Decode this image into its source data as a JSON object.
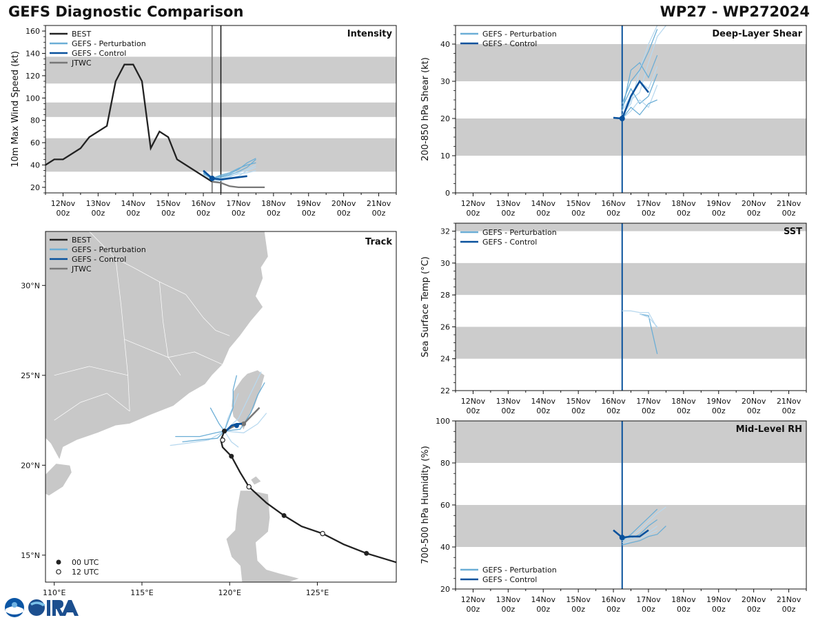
{
  "header": {
    "title_left": "GEFS Diagnostic Comparison",
    "title_right": "WP27 - WP272024"
  },
  "colors": {
    "best": "#222222",
    "perturbation": "#6baed6",
    "perturbation_light": "#b9d9ef",
    "control": "#08519c",
    "jtwc": "#777777",
    "band": "#cccccc",
    "land": "#c8c8c8",
    "init_line_gray": "#888888"
  },
  "time_axis": {
    "range_hours": [
      -108,
      132
    ],
    "ticks": [
      {
        "t": -96,
        "day": "12Nov",
        "hour": "00z"
      },
      {
        "t": -72,
        "day": "13Nov",
        "hour": "00z"
      },
      {
        "t": -48,
        "day": "14Nov",
        "hour": "00z"
      },
      {
        "t": -24,
        "day": "15Nov",
        "hour": "00z"
      },
      {
        "t": 0,
        "day": "16Nov",
        "hour": "00z"
      },
      {
        "t": 24,
        "day": "17Nov",
        "hour": "00z"
      },
      {
        "t": 48,
        "day": "18Nov",
        "hour": "00z"
      },
      {
        "t": 72,
        "day": "19Nov",
        "hour": "00z"
      },
      {
        "t": 96,
        "day": "20Nov",
        "hour": "00z"
      },
      {
        "t": 120,
        "day": "21Nov",
        "hour": "00z"
      }
    ],
    "init_time": 6,
    "current_time": 12
  },
  "legend_labels": {
    "best": "BEST",
    "perturbation": "GEFS - Perturbation",
    "control": "GEFS - Control",
    "jtwc": "JTWC",
    "utc00": "00 UTC",
    "utc12": "12 UTC"
  },
  "chart_data": [
    {
      "id": "intensity",
      "type": "line",
      "title": "Intensity",
      "ylabel": "10m Max Wind Speed (kt)",
      "ylim": [
        15,
        165
      ],
      "yticks": [
        20,
        40,
        60,
        80,
        100,
        120,
        140,
        160
      ],
      "bands": [
        [
          34,
          64
        ],
        [
          83,
          96
        ],
        [
          113,
          137
        ]
      ],
      "best": [
        [
          -108,
          40
        ],
        [
          -102,
          45
        ],
        [
          -96,
          45
        ],
        [
          -84,
          55
        ],
        [
          -78,
          65
        ],
        [
          -66,
          75
        ],
        [
          -60,
          115
        ],
        [
          -54,
          130
        ],
        [
          -48,
          130
        ],
        [
          -42,
          115
        ],
        [
          -36,
          55
        ],
        [
          -30,
          70
        ],
        [
          -24,
          65
        ],
        [
          -18,
          45
        ],
        [
          6,
          25
        ]
      ],
      "control": [
        [
          0,
          35
        ],
        [
          6,
          28
        ],
        [
          12,
          27
        ],
        [
          18,
          28
        ],
        [
          24,
          29
        ],
        [
          30,
          30
        ]
      ],
      "perturbations": [
        [
          [
            0,
            33
          ],
          [
            6,
            26
          ],
          [
            12,
            27
          ],
          [
            18,
            29
          ],
          [
            24,
            33
          ],
          [
            30,
            36
          ],
          [
            36,
            40
          ]
        ],
        [
          [
            0,
            32
          ],
          [
            6,
            28
          ],
          [
            12,
            30
          ],
          [
            18,
            32
          ],
          [
            24,
            36
          ],
          [
            30,
            42
          ],
          [
            36,
            46
          ]
        ],
        [
          [
            0,
            30
          ],
          [
            6,
            25
          ],
          [
            12,
            26
          ],
          [
            18,
            28
          ],
          [
            24,
            30
          ],
          [
            30,
            35
          ],
          [
            36,
            38
          ]
        ],
        [
          [
            0,
            34
          ],
          [
            6,
            27
          ],
          [
            12,
            29
          ],
          [
            18,
            31
          ],
          [
            24,
            34
          ],
          [
            30,
            38
          ],
          [
            36,
            45
          ]
        ],
        [
          [
            0,
            31
          ],
          [
            6,
            26
          ],
          [
            12,
            28
          ],
          [
            18,
            30
          ],
          [
            24,
            32
          ],
          [
            30,
            33
          ],
          [
            36,
            35
          ]
        ],
        [
          [
            0,
            33
          ],
          [
            6,
            28
          ],
          [
            12,
            31
          ],
          [
            18,
            33
          ],
          [
            24,
            37
          ],
          [
            30,
            40
          ],
          [
            36,
            42
          ]
        ]
      ],
      "jtwc": [
        [
          6,
          25
        ],
        [
          12,
          24
        ],
        [
          18,
          21
        ],
        [
          24,
          20
        ],
        [
          30,
          20
        ],
        [
          36,
          20
        ],
        [
          42,
          20
        ]
      ]
    },
    {
      "id": "shear",
      "type": "line",
      "title": "Deep-Layer Shear",
      "ylabel": "200-850 hPa Shear (kt)",
      "ylim": [
        0,
        45
      ],
      "yticks": [
        0,
        10,
        20,
        30,
        40
      ],
      "bands": [
        [
          10,
          20
        ],
        [
          30,
          40
        ]
      ],
      "control": [
        [
          0,
          20.2
        ],
        [
          6,
          20
        ],
        [
          12,
          26
        ],
        [
          18,
          30
        ],
        [
          24,
          27
        ]
      ],
      "perturbations": [
        [
          [
            6,
            20
          ],
          [
            12,
            25
          ],
          [
            18,
            27
          ],
          [
            24,
            35
          ],
          [
            30,
            42
          ],
          [
            36,
            45
          ]
        ],
        [
          [
            6,
            22
          ],
          [
            12,
            33
          ],
          [
            18,
            35
          ],
          [
            24,
            31
          ],
          [
            30,
            37
          ]
        ],
        [
          [
            6,
            21
          ],
          [
            12,
            24
          ],
          [
            18,
            33
          ],
          [
            24,
            40
          ],
          [
            30,
            45
          ]
        ],
        [
          [
            6,
            23
          ],
          [
            12,
            28
          ],
          [
            18,
            24
          ],
          [
            24,
            26
          ],
          [
            30,
            32
          ]
        ],
        [
          [
            6,
            20
          ],
          [
            12,
            22
          ],
          [
            18,
            25
          ],
          [
            24,
            23
          ],
          [
            30,
            29
          ]
        ],
        [
          [
            6,
            24
          ],
          [
            12,
            30
          ],
          [
            18,
            33
          ],
          [
            24,
            38
          ],
          [
            30,
            44
          ]
        ],
        [
          [
            6,
            22
          ],
          [
            12,
            26
          ],
          [
            18,
            30
          ],
          [
            24,
            28
          ],
          [
            30,
            34
          ]
        ],
        [
          [
            6,
            20
          ],
          [
            12,
            23
          ],
          [
            18,
            21
          ],
          [
            24,
            24
          ],
          [
            30,
            25
          ]
        ]
      ]
    },
    {
      "id": "sst",
      "type": "line",
      "title": "SST",
      "ylabel": "Sea Surface Temp (°C)",
      "ylim": [
        22,
        32.5
      ],
      "yticks": [
        22,
        24,
        26,
        28,
        30,
        32
      ],
      "bands": [
        [
          24,
          26
        ],
        [
          28,
          30
        ],
        [
          32,
          32.5
        ]
      ],
      "control": [],
      "perturbations": [
        [
          [
            6,
            27
          ],
          [
            12,
            27
          ],
          [
            18,
            26.9
          ],
          [
            24,
            26.9
          ],
          [
            30,
            25.9
          ]
        ],
        [
          [
            18,
            26.8
          ],
          [
            24,
            26.7
          ],
          [
            30,
            24.3
          ]
        ],
        [
          [
            18,
            26.8
          ],
          [
            24,
            26.6
          ],
          [
            30,
            26
          ]
        ]
      ]
    },
    {
      "id": "rh",
      "type": "line",
      "title": "Mid-Level RH",
      "ylabel": "700-500 hPa Humidity (%)",
      "ylim": [
        20,
        100
      ],
      "yticks": [
        20,
        40,
        60,
        80,
        100
      ],
      "bands": [
        [
          40,
          60
        ],
        [
          80,
          100
        ]
      ],
      "control": [
        [
          0,
          48
        ],
        [
          6,
          44.5
        ],
        [
          12,
          45
        ],
        [
          18,
          45
        ],
        [
          24,
          48
        ]
      ],
      "perturbations": [
        [
          [
            6,
            43
          ],
          [
            12,
            45
          ],
          [
            18,
            48
          ],
          [
            24,
            52
          ],
          [
            30,
            56
          ],
          [
            36,
            59
          ]
        ],
        [
          [
            6,
            42
          ],
          [
            12,
            44
          ],
          [
            18,
            46
          ],
          [
            24,
            50
          ],
          [
            30,
            53
          ]
        ],
        [
          [
            6,
            41
          ],
          [
            12,
            43
          ],
          [
            18,
            44
          ],
          [
            24,
            46
          ],
          [
            30,
            48
          ]
        ],
        [
          [
            6,
            43
          ],
          [
            12,
            46
          ],
          [
            18,
            50
          ],
          [
            24,
            54
          ],
          [
            30,
            58
          ]
        ],
        [
          [
            6,
            42
          ],
          [
            12,
            44
          ],
          [
            18,
            45
          ],
          [
            24,
            47
          ],
          [
            30,
            50
          ]
        ],
        [
          [
            6,
            41
          ],
          [
            12,
            42
          ],
          [
            18,
            43
          ],
          [
            24,
            45
          ],
          [
            30,
            46
          ],
          [
            36,
            50
          ]
        ]
      ]
    },
    {
      "id": "track",
      "type": "line",
      "title": "Track",
      "xlim": [
        109.5,
        129.5
      ],
      "ylim": [
        13.5,
        33
      ],
      "xticks": [
        {
          "v": 110,
          "label": "110°E"
        },
        {
          "v": 115,
          "label": "115°E"
        },
        {
          "v": 120,
          "label": "120°E"
        },
        {
          "v": 125,
          "label": "125°E"
        }
      ],
      "yticks": [
        {
          "v": 15,
          "label": "15°N"
        },
        {
          "v": 20,
          "label": "20°N"
        },
        {
          "v": 25,
          "label": "25°N"
        },
        {
          "v": 30,
          "label": "30°N"
        }
      ],
      "best": [
        [
          129.5,
          14.6
        ],
        [
          127.8,
          15.1
        ],
        [
          126.5,
          15.6
        ],
        [
          125.3,
          16.2
        ],
        [
          124.1,
          16.6
        ],
        [
          123.1,
          17.2
        ],
        [
          122.1,
          17.9
        ],
        [
          121.1,
          18.8
        ],
        [
          120.6,
          19.6
        ],
        [
          120.1,
          20.5
        ],
        [
          119.6,
          21.0
        ],
        [
          119.5,
          21.4
        ],
        [
          119.7,
          21.9
        ]
      ],
      "best_00utc": [
        [
          127.8,
          15.1
        ],
        [
          123.1,
          17.2
        ],
        [
          120.1,
          20.5
        ],
        [
          119.7,
          21.9
        ]
      ],
      "best_12utc": [
        [
          125.3,
          16.2
        ],
        [
          121.1,
          18.8
        ],
        [
          119.6,
          21.4
        ]
      ],
      "control": [
        [
          119.8,
          21.9
        ],
        [
          120.1,
          22.2
        ],
        [
          120.4,
          22.3
        ],
        [
          120.7,
          22.3
        ]
      ],
      "control_markers": [
        [
          119.7,
          21.9
        ],
        [
          120.4,
          22.2
        ]
      ],
      "jtwc": [
        [
          119.7,
          21.9
        ],
        [
          120.3,
          22.2
        ],
        [
          120.9,
          22.4
        ],
        [
          121.3,
          22.8
        ],
        [
          121.7,
          23.2
        ]
      ],
      "jtwc_markers": [
        [
          120.8,
          22.3
        ]
      ],
      "perturbations": [
        [
          [
            119.7,
            21.9
          ],
          [
            119.9,
            22.6
          ],
          [
            120.3,
            23.5
          ],
          [
            120.5,
            24.0
          ]
        ],
        [
          [
            119.7,
            21.9
          ],
          [
            120.6,
            22.0
          ],
          [
            121.2,
            22.9
          ],
          [
            121.6,
            23.9
          ],
          [
            122.0,
            24.6
          ]
        ],
        [
          [
            119.7,
            21.9
          ],
          [
            118.8,
            21.4
          ],
          [
            117.4,
            21.2
          ],
          [
            116.6,
            21.1
          ]
        ],
        [
          [
            119.7,
            21.9
          ],
          [
            119.3,
            21.5
          ],
          [
            118.2,
            21.4
          ],
          [
            117.3,
            21.3
          ]
        ],
        [
          [
            119.7,
            21.9
          ],
          [
            120.8,
            21.8
          ],
          [
            121.6,
            22.3
          ],
          [
            122.1,
            22.9
          ]
        ],
        [
          [
            119.7,
            21.9
          ],
          [
            120.2,
            23.2
          ],
          [
            120.2,
            24.2
          ],
          [
            120.4,
            25.0
          ]
        ],
        [
          [
            119.7,
            21.9
          ],
          [
            120.5,
            22.6
          ],
          [
            121.4,
            24.4
          ],
          [
            121.8,
            25.2
          ]
        ],
        [
          [
            119.7,
            21.9
          ],
          [
            119.4,
            22.3
          ],
          [
            118.9,
            23.2
          ]
        ],
        [
          [
            119.7,
            21.9
          ],
          [
            120.1,
            21.3
          ],
          [
            120.5,
            21.0
          ]
        ],
        [
          [
            119.7,
            21.9
          ],
          [
            119.2,
            21.8
          ],
          [
            118.3,
            21.6
          ],
          [
            116.9,
            21.6
          ]
        ]
      ]
    }
  ]
}
